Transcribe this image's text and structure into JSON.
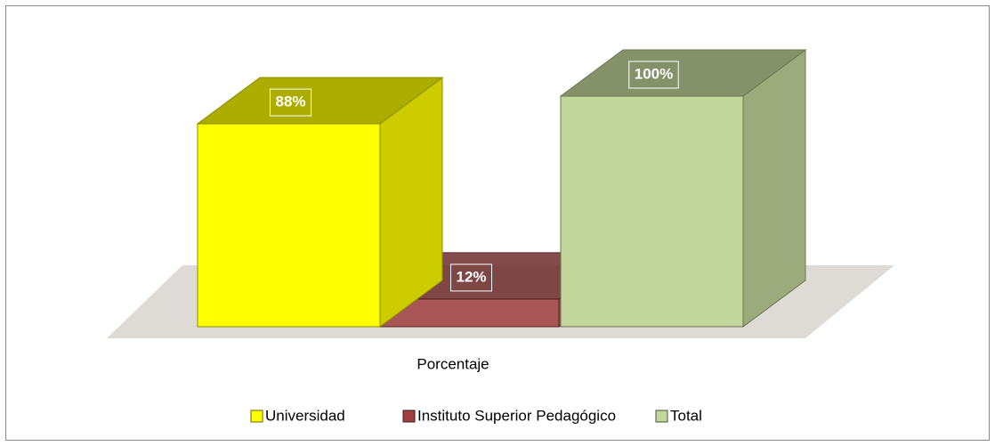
{
  "chart_data": {
    "type": "bar3d",
    "categories": [
      "Porcentaje"
    ],
    "series": [
      {
        "name": "Universidad",
        "color": "#ffff00",
        "values": [
          88
        ],
        "value_labels": [
          "88%"
        ]
      },
      {
        "name": "Instituto Superior Pedagógico",
        "color": "#a04040",
        "values": [
          12
        ],
        "value_labels": [
          "12%"
        ]
      },
      {
        "name": "Total",
        "color": "#c3d69b",
        "values": [
          100
        ],
        "value_labels": [
          "100%"
        ]
      }
    ],
    "legend": "bottom"
  }
}
